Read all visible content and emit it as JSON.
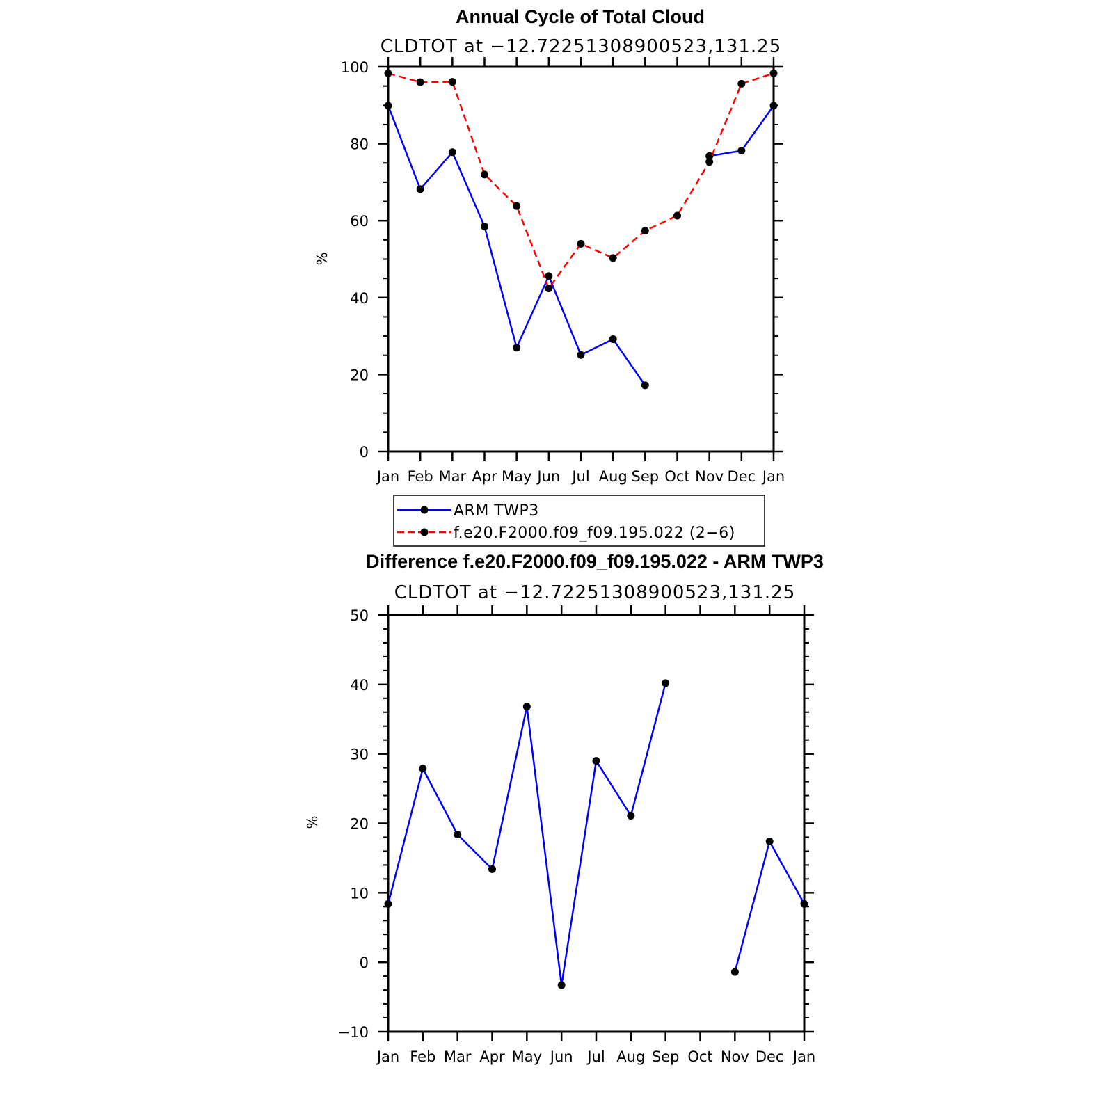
{
  "chart_data": [
    {
      "type": "line",
      "title": "Annual Cycle of Total Cloud",
      "subtitle": "CLDTOT at −12.72251308900523,131.25",
      "xlabel": "",
      "ylabel": "%",
      "categories": [
        "Jan",
        "Feb",
        "Mar",
        "Apr",
        "May",
        "Jun",
        "Jul",
        "Aug",
        "Sep",
        "Oct",
        "Nov",
        "Dec",
        "Jan"
      ],
      "ylim": [
        0,
        100
      ],
      "yticks": [
        0,
        20,
        40,
        60,
        80,
        100
      ],
      "series": [
        {
          "name": "ARM TWP3",
          "color": "#0000ff",
          "dash": "solid",
          "values": [
            89.9,
            68.2,
            77.8,
            58.5,
            27.0,
            45.6,
            25.1,
            29.2,
            17.2,
            null,
            76.8,
            78.2,
            89.9
          ]
        },
        {
          "name": "f.e20.F2000.f09_f09.195.022 (2−6)",
          "color": "#ff0000",
          "dash": "dashed",
          "values": [
            98.3,
            96.0,
            96.1,
            72.0,
            63.8,
            42.4,
            54.0,
            50.3,
            57.4,
            61.3,
            75.3,
            95.6,
            98.3
          ]
        }
      ],
      "legend": {
        "placement": "below",
        "entries": [
          "ARM TWP3",
          "f.e20.F2000.f09_f09.195.022 (2−6)"
        ]
      }
    },
    {
      "type": "line",
      "title": "Difference f.e20.F2000.f09_f09.195.022 - ARM TWP3",
      "subtitle": "CLDTOT at −12.72251308900523,131.25",
      "xlabel": "",
      "ylabel": "%",
      "categories": [
        "Jan",
        "Feb",
        "Mar",
        "Apr",
        "May",
        "Jun",
        "Jul",
        "Aug",
        "Sep",
        "Oct",
        "Nov",
        "Dec",
        "Jan"
      ],
      "ylim": [
        -10,
        50
      ],
      "yticks": [
        -10,
        0,
        10,
        20,
        30,
        40,
        50
      ],
      "series": [
        {
          "name": "Difference",
          "color": "#0000ff",
          "dash": "solid",
          "values": [
            8.4,
            27.9,
            18.4,
            13.4,
            36.8,
            -3.3,
            29.0,
            21.1,
            40.2,
            null,
            -1.4,
            17.4,
            8.4
          ]
        }
      ]
    }
  ]
}
